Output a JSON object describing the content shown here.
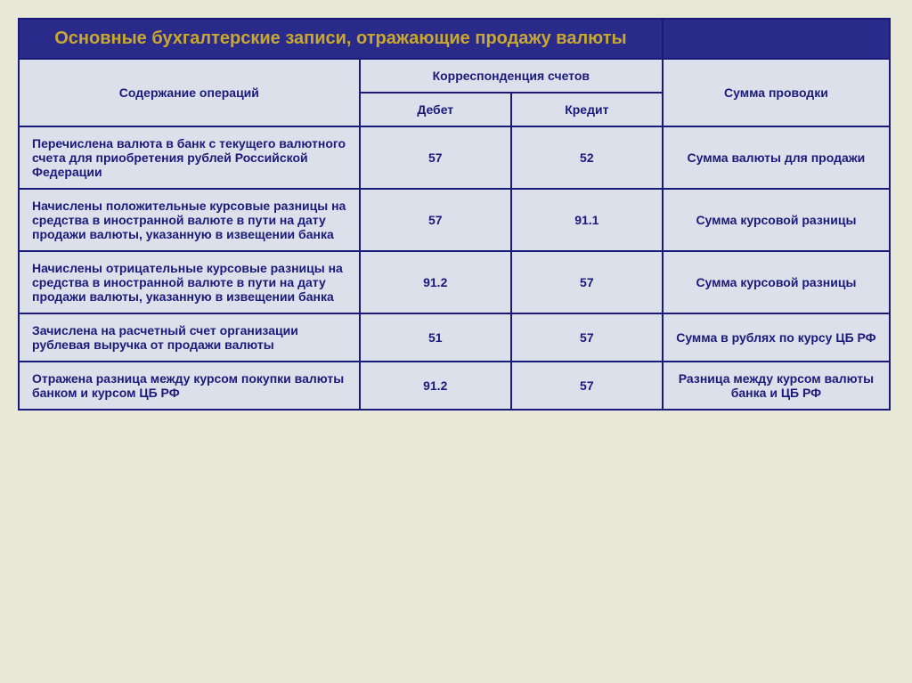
{
  "title": "Основные бухгалтерские записи, отражающие продажу валюты",
  "headers": {
    "content": "Содержание операций",
    "correspondence": "Корреспонденция счетов",
    "debit": "Дебет",
    "credit": "Кредит",
    "sum": "Сумма проводки"
  },
  "rows": [
    {
      "content": "Перечислена валюта в банк с текущего валютного счета для приобретения рублей Российской Федерации",
      "debit": "57",
      "credit": "52",
      "sum": "Сумма валюты для продажи"
    },
    {
      "content": "Начислены положительные курсовые разницы на средства в иностранной валюте в пути на дату продажи валюты, указанную в извещении банка",
      "debit": "57",
      "credit": "91.1",
      "sum": "Сумма курсовой разницы"
    },
    {
      "content": "Начислены отрицательные курсовые разницы на средства в иностранной валюте в пути на дату продажи валюты, указанную в извещении банка",
      "debit": "91.2",
      "credit": "57",
      "sum": "Сумма курсовой разницы"
    },
    {
      "content": "Зачислена на расчетный счет организации рублевая выручка от продажи валюты",
      "debit": "51",
      "credit": "57",
      "sum": "Сумма в рублях по курсу ЦБ РФ"
    },
    {
      "content": "Отражена разница между курсом покупки валюты банком и курсом ЦБ РФ",
      "debit": "91.2",
      "credit": "57",
      "sum": "Разница между курсом валюты банка и ЦБ РФ"
    }
  ],
  "styling": {
    "title_bg": "#2a2a8a",
    "title_color": "#c8a830",
    "title_fontsize": 20,
    "cell_bg": "#dce0ea",
    "cell_text_color": "#1a1a7a",
    "border_color": "#1a1a7a",
    "border_width": 2,
    "body_bg": "#e8e8d8",
    "font_family": "Arial",
    "body_fontsize": 14,
    "col_widths_pct": [
      36,
      16,
      16,
      24
    ]
  }
}
